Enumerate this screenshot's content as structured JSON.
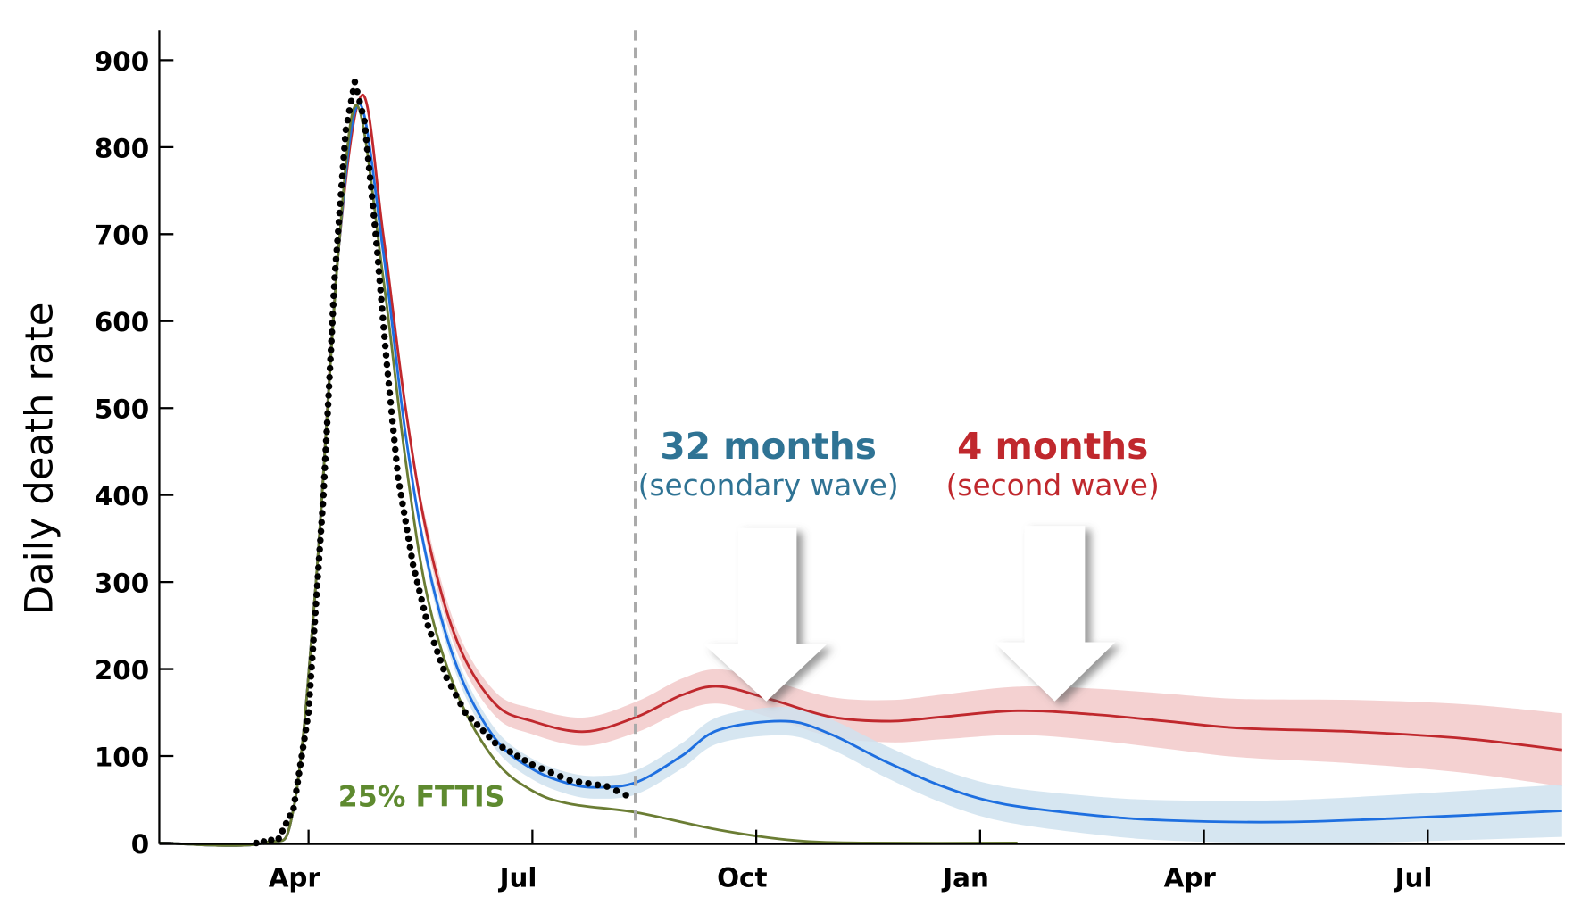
{
  "chart_data": {
    "type": "line",
    "title": "",
    "xlabel": "",
    "ylabel": "Daily death rate",
    "ylim": [
      0,
      900
    ],
    "xlim_months_since_feb": [
      0,
      18.8
    ],
    "yticks": [
      "0",
      "100",
      "200",
      "300",
      "400",
      "500",
      "600",
      "700",
      "800",
      "900"
    ],
    "ytick_values": [
      0,
      100,
      200,
      300,
      400,
      500,
      600,
      700,
      800,
      900
    ],
    "xticks": [
      "Apr",
      "Jul",
      "Oct",
      "Jan",
      "Apr",
      "Jul"
    ],
    "xtick_values": [
      2,
      5,
      8,
      11,
      14,
      17
    ],
    "forecast_start": 6.38,
    "grid": false,
    "colors": {
      "red": "#c0282d",
      "red_band": "#f2c9c9",
      "blue": "#1e6fe0",
      "blue_band": "#cfe2ee",
      "green": "#6b7d34",
      "observed": "#000000",
      "dashed": "#aaaaaa"
    },
    "series": [
      {
        "name": "Observed",
        "style": "dots",
        "x": [
          0,
          1.3,
          1.6,
          1.8,
          2.0,
          2.2,
          2.35,
          2.5,
          2.62,
          2.75,
          2.9,
          3.05,
          3.2,
          3.4,
          3.6,
          3.85,
          4.1,
          4.5,
          5.0,
          5.5,
          6.0,
          6.38
        ],
        "y": [
          0,
          0,
          5,
          40,
          150,
          400,
          650,
          820,
          875,
          830,
          700,
          550,
          420,
          320,
          250,
          190,
          150,
          115,
          90,
          72,
          65,
          50
        ]
      },
      {
        "name": "Second wave (4 months)",
        "color": "red",
        "x": [
          0,
          1.4,
          1.8,
          2.1,
          2.4,
          2.72,
          3.0,
          3.3,
          3.6,
          4.0,
          4.5,
          5.0,
          5.7,
          6.4,
          7.0,
          7.5,
          8.2,
          9.0,
          9.8,
          10.5,
          11.5,
          12.5,
          13.5,
          14.5,
          16,
          17.5,
          18.8
        ],
        "y": [
          0,
          0,
          40,
          300,
          680,
          860,
          700,
          500,
          350,
          230,
          160,
          140,
          128,
          145,
          170,
          180,
          165,
          145,
          140,
          145,
          152,
          148,
          140,
          132,
          128,
          120,
          107
        ],
        "band_halfwidth_start": 12,
        "band_halfwidth_end": 42
      },
      {
        "name": "Secondary wave (32 months)",
        "color": "blue",
        "x": [
          0,
          1.4,
          1.8,
          2.1,
          2.4,
          2.68,
          3.0,
          3.3,
          3.6,
          4.0,
          4.5,
          5.0,
          5.5,
          5.9,
          6.4,
          7.0,
          7.5,
          8.4,
          9.0,
          9.7,
          10.5,
          11.3,
          12.5,
          13.5,
          15,
          16.5,
          18.8
        ],
        "y": [
          0,
          0,
          40,
          300,
          680,
          850,
          680,
          470,
          320,
          200,
          120,
          85,
          68,
          64,
          70,
          100,
          130,
          140,
          125,
          95,
          65,
          45,
          32,
          26,
          24,
          28,
          37
        ],
        "band_halfwidth_start": 10,
        "band_halfwidth_end": 30
      },
      {
        "name": "25% FTTIS",
        "color": "green",
        "x": [
          0,
          1.4,
          1.8,
          2.1,
          2.4,
          2.65,
          3.0,
          3.3,
          3.6,
          4.0,
          4.5,
          5.0,
          5.5,
          6.4,
          7.5,
          8.5,
          9.5,
          11.5
        ],
        "y": [
          0,
          0,
          40,
          300,
          680,
          848,
          650,
          440,
          280,
          170,
          95,
          60,
          45,
          35,
          15,
          3,
          0,
          0
        ]
      }
    ],
    "annotations": {
      "blue_title": "32 months",
      "blue_sub": "(secondary wave)",
      "red_title": "4 months",
      "red_sub": "(second wave)",
      "green_label": "25% FTTIS"
    }
  }
}
